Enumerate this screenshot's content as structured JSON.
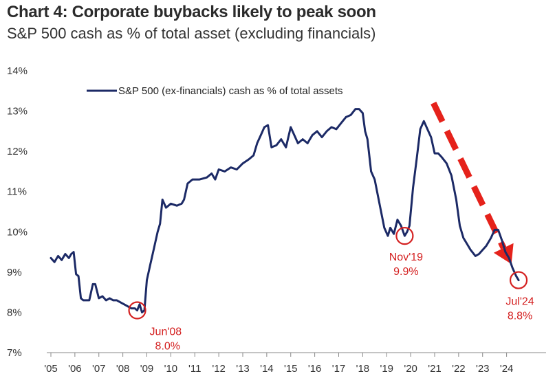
{
  "chart_data": {
    "type": "line",
    "title": "Chart 4: Corporate buybacks likely to peak soon",
    "subtitle": "S&P 500 cash as % of total asset (excluding financials)",
    "xlabel": "",
    "ylabel": "",
    "ylim": [
      7,
      14
    ],
    "xlim": [
      2005,
      2024.9
    ],
    "yticks": [
      "7%",
      "8%",
      "9%",
      "10%",
      "11%",
      "12%",
      "13%",
      "14%"
    ],
    "xticks": [
      "'05",
      "'06",
      "'07",
      "'08",
      "'09",
      "'10",
      "'11",
      "'12",
      "'13",
      "'14",
      "'15",
      "'16",
      "'17",
      "'18",
      "'19",
      "'20",
      "'21",
      "'22",
      "'23",
      "'24"
    ],
    "legend": "top-left",
    "grid": false,
    "series": [
      {
        "name": "S&P 500 (ex-financials) cash as % of total assets",
        "color": "#1c2a66",
        "x": [
          2005.0,
          2005.15,
          2005.3,
          2005.45,
          2005.6,
          2005.75,
          2005.85,
          2005.95,
          2006.05,
          2006.15,
          2006.25,
          2006.35,
          2006.45,
          2006.6,
          2006.75,
          2006.85,
          2007.0,
          2007.15,
          2007.3,
          2007.45,
          2007.6,
          2007.75,
          2007.9,
          2008.05,
          2008.2,
          2008.35,
          2008.5,
          2008.6,
          2008.7,
          2008.8,
          2008.9,
          2009.0,
          2009.15,
          2009.3,
          2009.45,
          2009.55,
          2009.65,
          2009.8,
          2010.0,
          2010.25,
          2010.45,
          2010.55,
          2010.7,
          2010.9,
          2011.2,
          2011.5,
          2011.7,
          2011.85,
          2012.0,
          2012.25,
          2012.5,
          2012.75,
          2013.0,
          2013.25,
          2013.45,
          2013.6,
          2013.75,
          2013.9,
          2014.05,
          2014.2,
          2014.4,
          2014.6,
          2014.8,
          2015.0,
          2015.15,
          2015.3,
          2015.5,
          2015.7,
          2015.9,
          2016.1,
          2016.3,
          2016.5,
          2016.7,
          2016.9,
          2017.1,
          2017.3,
          2017.5,
          2017.7,
          2017.85,
          2018.0,
          2018.1,
          2018.2,
          2018.35,
          2018.5,
          2018.7,
          2018.9,
          2019.05,
          2019.15,
          2019.3,
          2019.45,
          2019.6,
          2019.75,
          2019.85,
          2019.95,
          2020.1,
          2020.25,
          2020.4,
          2020.55,
          2020.7,
          2020.85,
          2021.0,
          2021.15,
          2021.3,
          2021.5,
          2021.7,
          2021.9,
          2022.05,
          2022.2,
          2022.35,
          2022.5,
          2022.7,
          2022.85,
          2023.0,
          2023.15,
          2023.35,
          2023.5,
          2023.65,
          2023.8,
          2023.95,
          2024.1,
          2024.25,
          2024.4,
          2024.5
        ],
        "y": [
          9.35,
          9.25,
          9.4,
          9.3,
          9.45,
          9.35,
          9.45,
          9.5,
          8.95,
          8.9,
          8.35,
          8.3,
          8.3,
          8.3,
          8.7,
          8.7,
          8.35,
          8.4,
          8.3,
          8.35,
          8.3,
          8.3,
          8.25,
          8.2,
          8.15,
          8.1,
          8.1,
          8.05,
          8.2,
          8.0,
          8.05,
          8.8,
          9.2,
          9.6,
          10.0,
          10.2,
          10.8,
          10.6,
          10.7,
          10.65,
          10.7,
          10.8,
          11.2,
          11.3,
          11.3,
          11.35,
          11.45,
          11.3,
          11.55,
          11.5,
          11.6,
          11.55,
          11.7,
          11.8,
          11.9,
          12.2,
          12.4,
          12.6,
          12.65,
          12.1,
          12.15,
          12.3,
          12.1,
          12.6,
          12.4,
          12.2,
          12.3,
          12.2,
          12.4,
          12.5,
          12.35,
          12.5,
          12.6,
          12.55,
          12.7,
          12.85,
          12.9,
          13.05,
          13.05,
          12.95,
          12.5,
          12.3,
          11.5,
          11.3,
          10.7,
          10.1,
          9.9,
          10.1,
          9.95,
          10.3,
          10.15,
          9.9,
          10.0,
          10.15,
          11.1,
          11.8,
          12.55,
          12.75,
          12.55,
          12.35,
          11.95,
          11.95,
          11.85,
          11.7,
          11.4,
          10.8,
          10.15,
          9.85,
          9.7,
          9.55,
          9.4,
          9.45,
          9.55,
          9.65,
          9.85,
          10.05,
          10.05,
          9.8,
          9.5,
          9.35,
          9.1,
          8.9,
          8.8
        ]
      }
    ],
    "annotations": [
      {
        "x": 2008.6,
        "y": 8.05,
        "label": "Jun'08",
        "value": "8.0%"
      },
      {
        "x": 2019.75,
        "y": 9.9,
        "label": "Nov'19",
        "value": "9.9%"
      },
      {
        "x": 2024.5,
        "y": 8.8,
        "label": "Jul'24",
        "value": "8.8%"
      }
    ],
    "trend_arrow": {
      "from": [
        2020.95,
        13.2
      ],
      "to": [
        2024.2,
        9.2
      ],
      "color": "#e5221b"
    }
  }
}
